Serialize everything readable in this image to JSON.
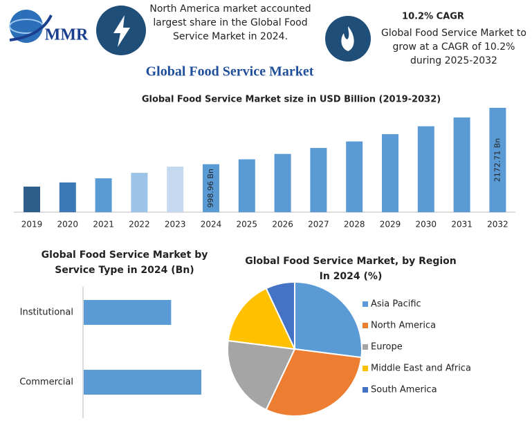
{
  "header": {
    "logo": "MMR",
    "fact_text": "North America market accounted largest share in the Global Food Service Market in 2024.",
    "cagr_title": "10.2% CAGR",
    "cagr_text": "Global Food Service Market to grow at a CAGR of 10.2% during 2025-2032",
    "main_title": "Global Food Service Market"
  },
  "chart_data": [
    {
      "type": "bar",
      "title": "Global Food Service Market size in USD Billion (2019-2032)",
      "categories": [
        "2019",
        "2020",
        "2021",
        "2022",
        "2023",
        "2024",
        "2025",
        "2026",
        "2027",
        "2028",
        "2029",
        "2030",
        "2031",
        "2032"
      ],
      "values": [
        533,
        619,
        705,
        820,
        949,
        998.96,
        1101,
        1213,
        1337,
        1473,
        1624,
        1789,
        1972,
        2172.71
      ],
      "value_labels": [
        null,
        null,
        null,
        null,
        null,
        "998.96 Bn",
        null,
        null,
        null,
        null,
        null,
        null,
        null,
        "2172.71 Bn"
      ],
      "colors": [
        "#2e5f8a",
        "#3b78b5",
        "#5b9bd5",
        "#9dc3e6",
        "#c5d9f1",
        "#5b9bd5",
        "#5b9bd5",
        "#5b9bd5",
        "#5b9bd5",
        "#5b9bd5",
        "#5b9bd5",
        "#5b9bd5",
        "#5b9bd5",
        "#5b9bd5"
      ]
    },
    {
      "type": "hbar",
      "title": [
        "Global Food Service Market by",
        "Service Type in 2024 (Bn)"
      ],
      "categories": [
        "Institutional",
        "Commercial"
      ],
      "values": [
        426,
        573
      ],
      "color": "#5b9bd5"
    },
    {
      "type": "pie",
      "title": [
        "Global Food Service Market, by Region",
        "In 2024 (%)"
      ],
      "categories": [
        "Asia Pacific",
        "North America",
        "Europe",
        "Middle East and Africa",
        "South America"
      ],
      "values": [
        27,
        30,
        20,
        16,
        7
      ],
      "colors": [
        "#5b9bd5",
        "#ed7d31",
        "#a5a5a5",
        "#ffc000",
        "#4472c4"
      ],
      "legend": "right"
    }
  ]
}
